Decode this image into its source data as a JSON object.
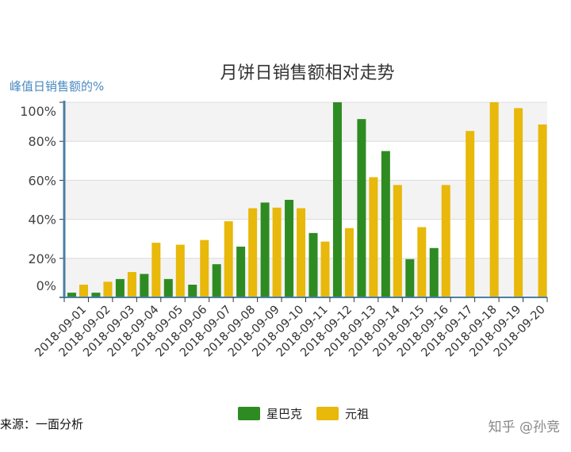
{
  "chart_data": {
    "type": "bar",
    "title": "月饼日销售额相对走势",
    "ylabel": "峰值日销售额的%",
    "xlabel": "",
    "ylim": [
      0,
      100
    ],
    "yticks": [
      "0%",
      "20%",
      "40%",
      "60%",
      "80%",
      "100%"
    ],
    "grid": true,
    "legend_position": "bottom",
    "categories": [
      "2018-09-01",
      "2018-09-02",
      "2018-09-03",
      "2018-09-04",
      "2018-09-05",
      "2018-09-06",
      "2018-09-07",
      "2018-09-08",
      "2018-09-09",
      "2018-09-10",
      "2018-09-11",
      "2018-09-12",
      "2018-09-13",
      "2018-09-14",
      "2018-09-15",
      "2018-09-16",
      "2018-09-17",
      "2018-09-18",
      "2018-09-19",
      "2018-09-20"
    ],
    "series": [
      {
        "name": "星巴克",
        "color": "#2e8b22",
        "values": [
          2.4,
          2.4,
          9.4,
          12,
          9.4,
          6.5,
          17,
          26,
          48.6,
          50,
          33,
          100,
          91.4,
          75,
          19.6,
          25.3,
          0,
          0,
          0,
          0
        ]
      },
      {
        "name": "元祖",
        "color": "#e8b80a",
        "values": [
          6.5,
          8,
          13,
          28,
          27,
          29.4,
          39,
          45.7,
          46,
          45.7,
          28.6,
          35.5,
          61.6,
          57.6,
          36,
          57.6,
          85.3,
          100,
          97,
          88.6
        ]
      }
    ]
  },
  "source": "来源：一面分析",
  "watermark": "知乎 @孙竞"
}
